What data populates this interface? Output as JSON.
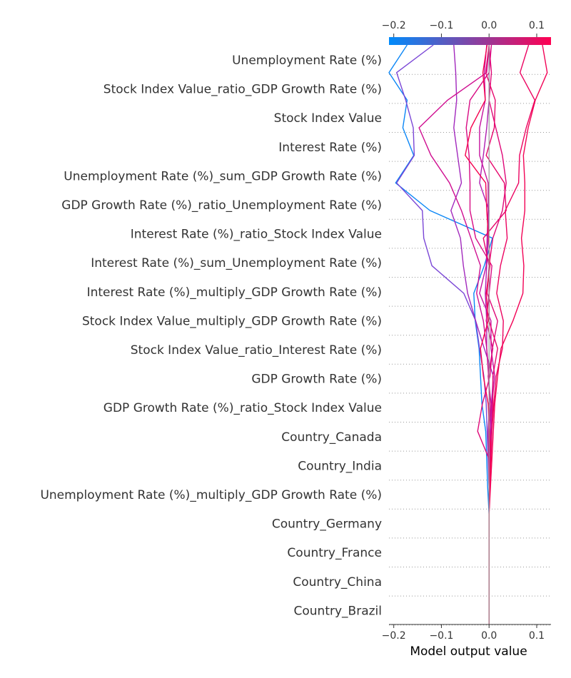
{
  "chart_data": {
    "type": "line",
    "chart_kind": "shap-decision-plot",
    "xlabel": "Model output value",
    "xlim": [
      -0.21,
      0.13
    ],
    "x_ticks": [
      -0.2,
      -0.1,
      0.0,
      0.1
    ],
    "x_tick_labels": [
      "−0.2",
      "−0.1",
      "0.0",
      "0.1"
    ],
    "base_value": 0.0,
    "grid": "dotted horizontal lines between features",
    "colorbar": {
      "position": "top",
      "colors": [
        "#008bfb",
        "#ff0052"
      ],
      "tick_labels": [
        "−0.2",
        "−0.1",
        "0.0",
        "0.1"
      ]
    },
    "features": [
      "Unemployment Rate (%)",
      "Stock Index Value_ratio_GDP Growth Rate (%)",
      "Stock Index Value",
      "Interest Rate (%)",
      "Unemployment Rate (%)_sum_GDP Growth Rate (%)",
      "GDP Growth Rate (%)_ratio_Unemployment Rate (%)",
      "Interest Rate (%)_ratio_Stock Index Value",
      "Interest Rate (%)_sum_Unemployment Rate (%)",
      "Interest Rate (%)_multiply_GDP Growth Rate (%)",
      "Stock Index Value_multiply_GDP Growth Rate (%)",
      "Stock Index Value_ratio_Interest Rate (%)",
      "GDP Growth Rate (%)",
      "GDP Growth Rate (%)_ratio_Stock Index Value",
      "Country_Canada",
      "Country_India",
      "Unemployment Rate (%)_multiply_GDP Growth Rate (%)",
      "Country_Germany",
      "Country_France",
      "Country_China",
      "Country_Brazil"
    ],
    "series": [
      {
        "color": "#0a86f6",
        "values": [
          0.0,
          0.0,
          0.0,
          0.0,
          0.0,
          -0.003,
          -0.005,
          -0.007,
          -0.015,
          -0.018,
          -0.021,
          -0.029,
          -0.032,
          -0.01,
          0.007,
          -0.124,
          -0.196,
          -0.158,
          -0.181,
          -0.172,
          -0.21,
          -0.172
        ]
      },
      {
        "color": "#7a46d6",
        "values": [
          0.0,
          0.0,
          0.0,
          0.0,
          0.0,
          0.0,
          -0.002,
          -0.004,
          -0.006,
          -0.011,
          -0.02,
          -0.028,
          -0.053,
          -0.12,
          -0.137,
          -0.14,
          -0.194,
          -0.157,
          -0.159,
          -0.175,
          -0.194,
          -0.117
        ]
      },
      {
        "color": "#a229bd",
        "values": [
          0.0,
          0.0,
          0.0,
          0.0,
          0.0,
          0.0,
          0.001,
          0.003,
          0.005,
          0.009,
          -0.01,
          -0.028,
          -0.045,
          -0.054,
          -0.06,
          -0.08,
          -0.058,
          -0.066,
          -0.074,
          -0.068,
          -0.07,
          -0.074
        ]
      },
      {
        "color": "#b01fb2",
        "values": [
          0.0,
          0.0,
          0.0,
          0.0,
          0.0,
          0.0,
          0.0,
          0.0,
          0.001,
          0.0,
          -0.005,
          -0.005,
          -0.008,
          -0.005,
          -0.002,
          0.0,
          -0.02,
          -0.012,
          -0.005,
          0.0,
          0.0,
          0.0
        ]
      },
      {
        "color": "#c6139e",
        "values": [
          0.0,
          0.0,
          0.0,
          0.0,
          0.0,
          0.0,
          0.002,
          0.004,
          0.006,
          0.012,
          0.004,
          0.004,
          -0.02,
          -0.006,
          -0.004,
          -0.002,
          -0.002,
          -0.02,
          -0.02,
          -0.008,
          -0.01,
          -0.005
        ]
      },
      {
        "color": "#cf0e90",
        "values": [
          0.0,
          0.0,
          0.0,
          0.0,
          0.0,
          0.0,
          -0.001,
          -0.002,
          0.001,
          -0.001,
          -0.005,
          -0.012,
          -0.026,
          -0.018,
          -0.038,
          -0.058,
          -0.083,
          -0.122,
          -0.147,
          -0.087,
          -0.005,
          0.0
        ]
      },
      {
        "color": "#d80b84",
        "values": [
          0.0,
          0.0,
          0.0,
          0.0,
          0.0,
          0.0,
          0.0,
          0.0,
          0.004,
          -0.002,
          0.008,
          -0.006,
          0.0,
          0.006,
          -0.028,
          -0.04,
          -0.04,
          -0.042,
          -0.048,
          -0.04,
          0.0,
          0.005
        ]
      },
      {
        "color": "#df0878",
        "values": [
          0.0,
          0.0,
          0.0,
          0.0,
          0.0,
          0.0,
          0.0,
          -0.024,
          -0.014,
          0.002,
          0.007,
          0.018,
          -0.004,
          0.0,
          0.008,
          0.028,
          0.036,
          0.028,
          0.014,
          0.0,
          0.005,
          0.0
        ]
      },
      {
        "color": "#e6066c",
        "values": [
          0.0,
          0.0,
          0.0,
          0.0,
          0.0,
          0.001,
          0.004,
          0.006,
          0.008,
          0.008,
          0.018,
          0.0,
          0.0,
          0.0,
          -0.012,
          0.036,
          0.032,
          -0.006,
          0.011,
          0.013,
          -0.007,
          0.0
        ]
      },
      {
        "color": "#ec0461",
        "values": [
          0.0,
          0.0,
          0.0,
          0.0,
          0.0,
          0.001,
          0.003,
          0.006,
          0.01,
          0.015,
          0.028,
          0.03,
          0.016,
          0.024,
          0.038,
          0.034,
          0.062,
          0.064,
          0.078,
          0.096,
          0.065,
          0.083
        ]
      },
      {
        "color": "#f20356",
        "values": [
          0.0,
          0.0,
          0.0,
          0.0,
          0.0,
          0.003,
          0.006,
          0.009,
          0.012,
          0.018,
          0.025,
          0.05,
          0.071,
          0.073,
          0.068,
          0.075,
          0.075,
          0.072,
          0.082,
          0.097,
          0.122,
          0.112
        ]
      },
      {
        "color": "#f5034f",
        "values": [
          0.0,
          0.0,
          0.0,
          0.0,
          0.0,
          0.0,
          0.004,
          0.001,
          -0.002,
          -0.012,
          -0.018,
          -0.002,
          -0.006,
          0.002,
          -0.001,
          -0.005,
          -0.007,
          -0.05,
          -0.038,
          -0.008,
          -0.013,
          -0.004
        ]
      }
    ]
  }
}
